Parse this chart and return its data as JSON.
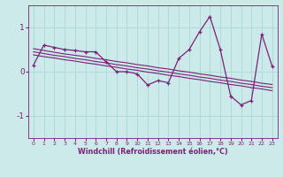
{
  "x": [
    0,
    1,
    2,
    3,
    4,
    5,
    6,
    7,
    8,
    9,
    10,
    11,
    12,
    13,
    14,
    15,
    16,
    17,
    18,
    19,
    20,
    21,
    22,
    23
  ],
  "y_main": [
    0.15,
    0.6,
    0.55,
    0.5,
    0.48,
    0.45,
    0.45,
    0.22,
    0.0,
    0.0,
    -0.05,
    -0.3,
    -0.2,
    -0.25,
    0.3,
    0.5,
    0.9,
    1.25,
    0.5,
    -0.55,
    -0.75,
    -0.65,
    0.85,
    0.12
  ],
  "y_line1": [
    0.52,
    0.48,
    0.44,
    0.4,
    0.37,
    0.34,
    0.3,
    0.27,
    0.23,
    0.2,
    0.16,
    0.13,
    0.09,
    0.06,
    0.02,
    -0.01,
    -0.05,
    -0.08,
    -0.12,
    -0.15,
    -0.19,
    -0.22,
    -0.26,
    -0.29
  ],
  "y_line2": [
    0.45,
    0.41,
    0.37,
    0.34,
    0.3,
    0.27,
    0.23,
    0.2,
    0.16,
    0.13,
    0.09,
    0.06,
    0.02,
    -0.01,
    -0.05,
    -0.08,
    -0.12,
    -0.15,
    -0.19,
    -0.22,
    -0.26,
    -0.29,
    -0.33,
    -0.36
  ],
  "y_line3": [
    0.38,
    0.34,
    0.31,
    0.27,
    0.24,
    0.2,
    0.17,
    0.13,
    0.1,
    0.06,
    0.03,
    -0.01,
    -0.04,
    -0.08,
    -0.11,
    -0.15,
    -0.18,
    -0.22,
    -0.25,
    -0.29,
    -0.32,
    -0.36,
    -0.39,
    -0.43
  ],
  "line_color": "#7B2177",
  "bg_color": "#cceaea",
  "grid_color": "#aad8d8",
  "xlabel": "Windchill (Refroidissement éolien,°C)",
  "ylim": [
    -1.5,
    1.5
  ],
  "xlim": [
    -0.5,
    23.5
  ],
  "yticks": [
    -1,
    0,
    1
  ],
  "xticks": [
    0,
    1,
    2,
    3,
    4,
    5,
    6,
    7,
    8,
    9,
    10,
    11,
    12,
    13,
    14,
    15,
    16,
    17,
    18,
    19,
    20,
    21,
    22,
    23
  ]
}
